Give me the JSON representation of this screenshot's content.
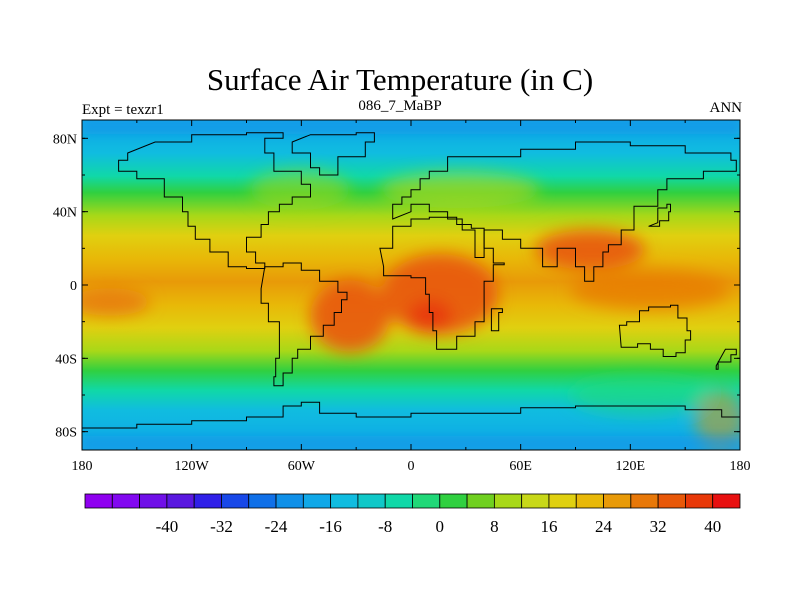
{
  "title": "Surface Air Temperature (in C)",
  "left_label": "Expt = texzr1",
  "center_label": "086_7_MaBP",
  "right_label": "ANN",
  "map": {
    "lon_range": [
      -180,
      180
    ],
    "lat_range": [
      -90,
      90
    ],
    "lat_ticks": [
      {
        "value": 80,
        "label": "80N"
      },
      {
        "value": 40,
        "label": "40N"
      },
      {
        "value": 0,
        "label": "0"
      },
      {
        "value": -40,
        "label": "40S"
      },
      {
        "value": -80,
        "label": "80S"
      }
    ],
    "lon_ticks": [
      {
        "value": -180,
        "label": "180"
      },
      {
        "value": -120,
        "label": "120W"
      },
      {
        "value": -60,
        "label": "60W"
      },
      {
        "value": 0,
        "label": "0"
      },
      {
        "value": 60,
        "label": "60E"
      },
      {
        "value": 120,
        "label": "120E"
      },
      {
        "value": 180,
        "label": "180"
      }
    ],
    "continents": [
      {
        "name": "north-america",
        "outline": [
          [
            -140,
            78
          ],
          [
            -120,
            82
          ],
          [
            -90,
            83
          ],
          [
            -70,
            80
          ],
          [
            -80,
            72
          ],
          [
            -75,
            62
          ],
          [
            -60,
            55
          ],
          [
            -55,
            48
          ],
          [
            -65,
            44
          ],
          [
            -72,
            40
          ],
          [
            -78,
            33
          ],
          [
            -82,
            26
          ],
          [
            -90,
            18
          ],
          [
            -85,
            12
          ],
          [
            -80,
            9
          ],
          [
            -90,
            10
          ],
          [
            -100,
            18
          ],
          [
            -110,
            25
          ],
          [
            -118,
            32
          ],
          [
            -122,
            40
          ],
          [
            -125,
            48
          ],
          [
            -135,
            58
          ],
          [
            -150,
            62
          ],
          [
            -160,
            68
          ],
          [
            -155,
            72
          ]
        ]
      },
      {
        "name": "south-america",
        "outline": [
          [
            -80,
            10
          ],
          [
            -70,
            12
          ],
          [
            -60,
            8
          ],
          [
            -50,
            2
          ],
          [
            -40,
            -4
          ],
          [
            -35,
            -8
          ],
          [
            -38,
            -15
          ],
          [
            -42,
            -22
          ],
          [
            -48,
            -28
          ],
          [
            -55,
            -35
          ],
          [
            -62,
            -40
          ],
          [
            -65,
            -48
          ],
          [
            -70,
            -55
          ],
          [
            -75,
            -50
          ],
          [
            -74,
            -40
          ],
          [
            -72,
            -30
          ],
          [
            -72,
            -20
          ],
          [
            -78,
            -10
          ],
          [
            -82,
            -2
          ]
        ]
      },
      {
        "name": "africa",
        "outline": [
          [
            -17,
            20
          ],
          [
            -10,
            32
          ],
          [
            0,
            36
          ],
          [
            10,
            37
          ],
          [
            25,
            33
          ],
          [
            33,
            31
          ],
          [
            40,
            20
          ],
          [
            45,
            12
          ],
          [
            51,
            11
          ],
          [
            45,
            2
          ],
          [
            40,
            -10
          ],
          [
            40,
            -20
          ],
          [
            35,
            -28
          ],
          [
            25,
            -35
          ],
          [
            18,
            -35
          ],
          [
            14,
            -25
          ],
          [
            12,
            -15
          ],
          [
            10,
            -5
          ],
          [
            8,
            4
          ],
          [
            0,
            5
          ],
          [
            -10,
            5
          ],
          [
            -15,
            10
          ]
        ]
      },
      {
        "name": "eurasia",
        "outline": [
          [
            -10,
            36
          ],
          [
            -10,
            44
          ],
          [
            -5,
            48
          ],
          [
            0,
            52
          ],
          [
            5,
            58
          ],
          [
            10,
            62
          ],
          [
            20,
            70
          ],
          [
            40,
            70
          ],
          [
            60,
            74
          ],
          [
            90,
            78
          ],
          [
            120,
            76
          ],
          [
            150,
            72
          ],
          [
            175,
            68
          ],
          [
            178,
            62
          ],
          [
            160,
            58
          ],
          [
            140,
            52
          ],
          [
            135,
            43
          ],
          [
            122,
            38
          ],
          [
            122,
            30
          ],
          [
            115,
            22
          ],
          [
            108,
            18
          ],
          [
            105,
            10
          ],
          [
            100,
            2
          ],
          [
            95,
            10
          ],
          [
            90,
            20
          ],
          [
            80,
            10
          ],
          [
            72,
            20
          ],
          [
            60,
            25
          ],
          [
            55,
            25
          ],
          [
            50,
            30
          ],
          [
            40,
            15
          ],
          [
            35,
            30
          ],
          [
            28,
            36
          ],
          [
            20,
            40
          ],
          [
            10,
            44
          ],
          [
            0,
            40
          ]
        ]
      },
      {
        "name": "australia",
        "outline": [
          [
            114,
            -22
          ],
          [
            118,
            -20
          ],
          [
            125,
            -14
          ],
          [
            130,
            -12
          ],
          [
            136,
            -12
          ],
          [
            142,
            -11
          ],
          [
            146,
            -18
          ],
          [
            151,
            -25
          ],
          [
            153,
            -30
          ],
          [
            150,
            -37
          ],
          [
            145,
            -39
          ],
          [
            138,
            -35
          ],
          [
            131,
            -32
          ],
          [
            124,
            -34
          ],
          [
            115,
            -34
          ]
        ]
      },
      {
        "name": "antarctica",
        "outline": [
          [
            -180,
            -78
          ],
          [
            -150,
            -76
          ],
          [
            -120,
            -74
          ],
          [
            -90,
            -72
          ],
          [
            -70,
            -66
          ],
          [
            -60,
            -64
          ],
          [
            -50,
            -70
          ],
          [
            -30,
            -72
          ],
          [
            0,
            -70
          ],
          [
            30,
            -70
          ],
          [
            60,
            -67
          ],
          [
            90,
            -66
          ],
          [
            120,
            -66
          ],
          [
            150,
            -68
          ],
          [
            170,
            -72
          ],
          [
            180,
            -78
          ],
          [
            180,
            -90
          ],
          [
            -180,
            -90
          ]
        ]
      },
      {
        "name": "greenland",
        "outline": [
          [
            -55,
            82
          ],
          [
            -30,
            83
          ],
          [
            -20,
            78
          ],
          [
            -25,
            70
          ],
          [
            -40,
            60
          ],
          [
            -50,
            64
          ],
          [
            -55,
            72
          ],
          [
            -65,
            78
          ]
        ]
      },
      {
        "name": "madagascar",
        "outline": [
          [
            44,
            -13
          ],
          [
            50,
            -15
          ],
          [
            48,
            -25
          ],
          [
            44,
            -24
          ]
        ]
      },
      {
        "name": "japan",
        "outline": [
          [
            130,
            32
          ],
          [
            136,
            35
          ],
          [
            141,
            40
          ],
          [
            142,
            44
          ],
          [
            140,
            42
          ],
          [
            135,
            34
          ]
        ]
      },
      {
        "name": "new-zealand",
        "outline": [
          [
            172,
            -35
          ],
          [
            178,
            -38
          ],
          [
            175,
            -42
          ],
          [
            168,
            -46
          ],
          [
            167,
            -44
          ]
        ]
      }
    ]
  },
  "colorbar": {
    "colors": [
      "#8f00f0",
      "#8208f0",
      "#7010e8",
      "#5a18e0",
      "#3020e8",
      "#1848e8",
      "#1070e8",
      "#1090e8",
      "#10a8e8",
      "#10bce0",
      "#10c8c8",
      "#10d8a8",
      "#20d878",
      "#30d040",
      "#70d020",
      "#a8d818",
      "#c8d818",
      "#e0d010",
      "#e8b808",
      "#e89a08",
      "#e87808",
      "#e85808",
      "#e83808",
      "#e81010"
    ],
    "labels": [
      "-40",
      "-32",
      "-24",
      "-16",
      "-8",
      "0",
      "8",
      "16",
      "24",
      "32",
      "40"
    ],
    "label_boxes": [
      3,
      5,
      7,
      9,
      11,
      13,
      15,
      17,
      19,
      21,
      23
    ]
  }
}
